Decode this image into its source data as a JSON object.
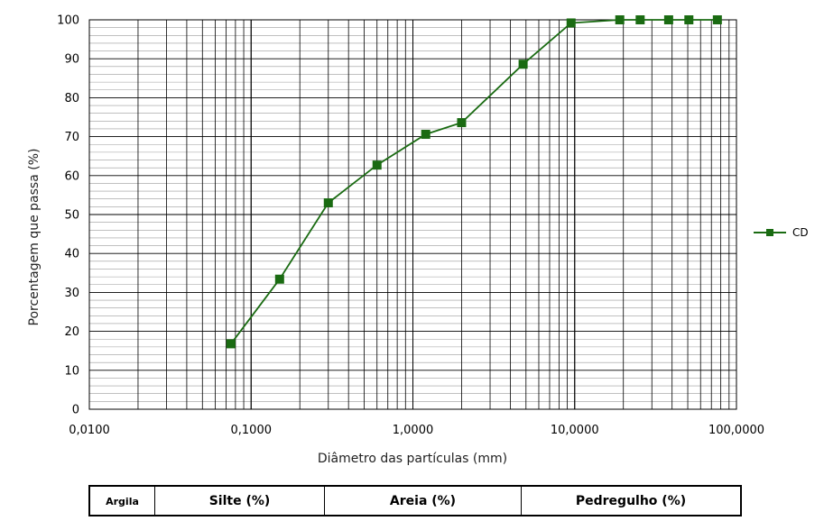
{
  "chart_data": {
    "type": "line",
    "title": "",
    "xlabel": "Diâmetro das partículas (mm)",
    "ylabel": "Porcentagem que passa (%)",
    "xscale": "log",
    "xlim": [
      0.01,
      100
    ],
    "ylim": [
      0,
      100
    ],
    "grid": true,
    "legend_position": "right",
    "x_tick_labels": [
      "0,0100",
      "0,1000",
      "1,0000",
      "10,0000",
      "100,0000"
    ],
    "y_tick_labels": [
      "0",
      "10",
      "20",
      "30",
      "40",
      "50",
      "60",
      "70",
      "80",
      "90",
      "100"
    ],
    "series": [
      {
        "name": "CD",
        "color": "#1a6b12",
        "marker": "square",
        "x": [
          0.075,
          0.15,
          0.3,
          0.6,
          1.2,
          2.0,
          4.8,
          9.5,
          19.0,
          25.4,
          38.1,
          50.8,
          76.2
        ],
        "y": [
          16.8,
          33.4,
          53.0,
          62.7,
          70.6,
          73.6,
          88.6,
          99.2,
          100,
          100,
          100,
          100,
          100
        ]
      }
    ]
  },
  "classification_table": {
    "argila": "Argila",
    "silte": "Silte (%)",
    "areia": "Areia (%)",
    "pedregulho": "Pedregulho (%)"
  }
}
